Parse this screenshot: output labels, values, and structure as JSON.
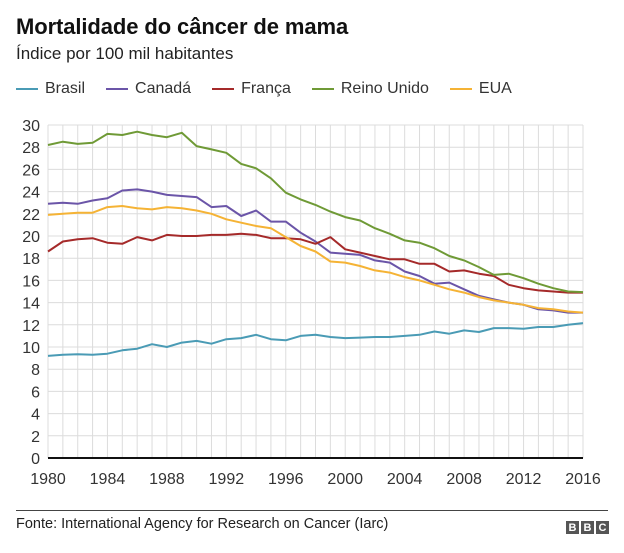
{
  "header": {
    "title": "Mortalidade do câncer de mama",
    "subtitle": "Índice por 100 mil habitantes"
  },
  "footer": {
    "source": "Fonte: International Agency for Research on Cancer (Iarc)",
    "logo_letters": [
      "B",
      "B",
      "C"
    ]
  },
  "chart_data": {
    "type": "line",
    "title": "Mortalidade do câncer de mama",
    "subtitle": "Índice por 100 mil habitantes",
    "xlabel": "",
    "ylabel": "",
    "xlim": [
      1980,
      2016
    ],
    "ylim": [
      0,
      30
    ],
    "grid": true,
    "legend_position": "top",
    "x_ticks": [
      1980,
      1984,
      1988,
      1992,
      1996,
      2000,
      2004,
      2008,
      2012,
      2016
    ],
    "y_ticks": [
      0,
      2,
      4,
      6,
      8,
      10,
      12,
      14,
      16,
      18,
      20,
      22,
      24,
      26,
      28,
      30
    ],
    "x": [
      1980,
      1981,
      1982,
      1983,
      1984,
      1985,
      1986,
      1987,
      1988,
      1989,
      1990,
      1991,
      1992,
      1993,
      1994,
      1995,
      1996,
      1997,
      1998,
      1999,
      2000,
      2001,
      2002,
      2003,
      2004,
      2005,
      2006,
      2007,
      2008,
      2009,
      2010,
      2011,
      2012,
      2013,
      2014,
      2015,
      2016
    ],
    "series": [
      {
        "name": "Brasil",
        "color": "#4a9bb5",
        "values": [
          9.2,
          9.3,
          9.35,
          9.3,
          9.4,
          9.7,
          9.85,
          10.25,
          10.0,
          10.4,
          10.55,
          10.3,
          10.7,
          10.8,
          11.1,
          10.7,
          10.6,
          11.0,
          11.1,
          10.9,
          10.8,
          10.85,
          10.9,
          10.9,
          11.0,
          11.1,
          11.4,
          11.2,
          11.5,
          11.35,
          11.7,
          11.7,
          11.65,
          11.8,
          11.8,
          12.0,
          12.15
        ]
      },
      {
        "name": "Canadá",
        "color": "#6b55a8",
        "values": [
          22.9,
          23.0,
          22.9,
          23.2,
          23.4,
          24.1,
          24.2,
          24.0,
          23.7,
          23.6,
          23.5,
          22.6,
          22.7,
          21.8,
          22.3,
          21.3,
          21.3,
          20.3,
          19.5,
          18.5,
          18.4,
          18.3,
          17.8,
          17.6,
          16.8,
          16.4,
          15.7,
          15.8,
          15.2,
          14.6,
          14.3,
          14.0,
          13.8,
          13.4,
          13.3,
          13.1,
          13.1
        ]
      },
      {
        "name": "França",
        "color": "#a52a2a",
        "values": [
          18.6,
          19.5,
          19.7,
          19.8,
          19.4,
          19.3,
          19.9,
          19.6,
          20.1,
          20.0,
          20.0,
          20.1,
          20.1,
          20.2,
          20.1,
          19.8,
          19.8,
          19.7,
          19.3,
          19.9,
          18.8,
          18.5,
          18.2,
          17.9,
          17.9,
          17.5,
          17.5,
          16.8,
          16.9,
          16.6,
          16.4,
          15.6,
          15.3,
          15.1,
          15.0,
          14.9,
          14.9
        ]
      },
      {
        "name": "Reino Unido",
        "color": "#6f9a36",
        "values": [
          28.2,
          28.5,
          28.3,
          28.4,
          29.2,
          29.1,
          29.4,
          29.1,
          28.9,
          29.3,
          28.1,
          27.8,
          27.5,
          26.5,
          26.1,
          25.2,
          23.9,
          23.3,
          22.8,
          22.2,
          21.7,
          21.4,
          20.7,
          20.2,
          19.6,
          19.4,
          18.9,
          18.2,
          17.8,
          17.2,
          16.5,
          16.6,
          16.2,
          15.7,
          15.3,
          15.0,
          14.95
        ]
      },
      {
        "name": "EUA",
        "color": "#f5b335",
        "values": [
          21.9,
          22.0,
          22.1,
          22.1,
          22.6,
          22.7,
          22.5,
          22.4,
          22.6,
          22.5,
          22.3,
          22.0,
          21.5,
          21.2,
          20.9,
          20.7,
          19.9,
          19.1,
          18.6,
          17.7,
          17.6,
          17.3,
          16.9,
          16.7,
          16.3,
          16.0,
          15.6,
          15.2,
          14.9,
          14.5,
          14.2,
          14.0,
          13.8,
          13.5,
          13.4,
          13.2,
          13.1
        ]
      }
    ]
  }
}
